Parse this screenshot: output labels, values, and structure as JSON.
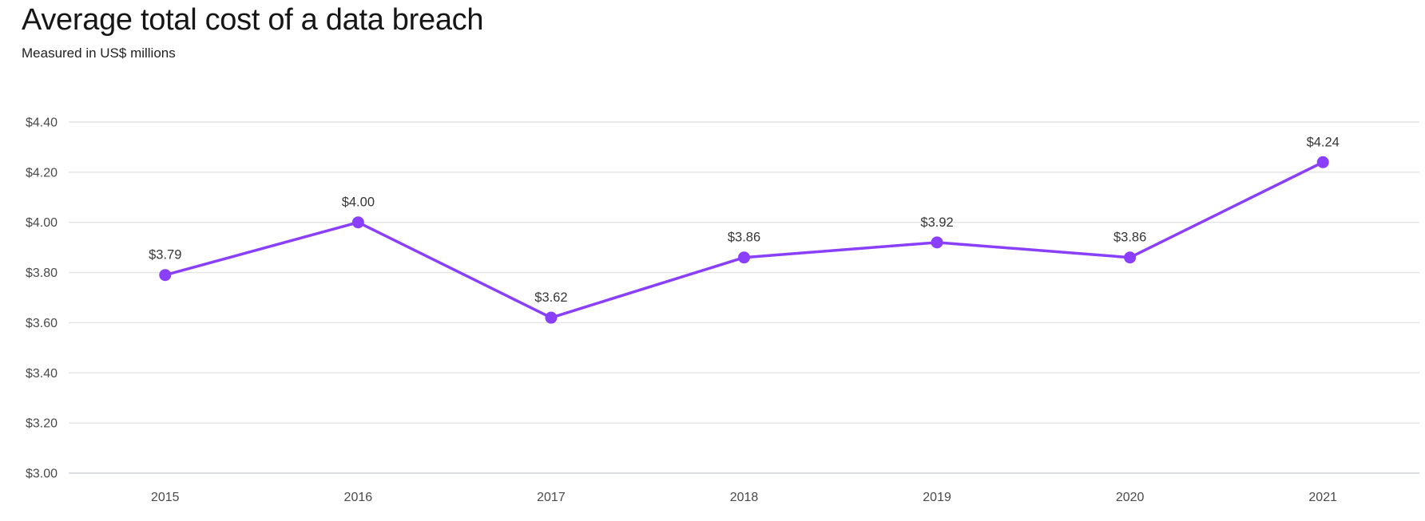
{
  "chart_data": {
    "type": "line",
    "title": "Average total cost of a data breach",
    "subtitle": "Measured in US$ millions",
    "categories": [
      "2015",
      "2016",
      "2017",
      "2018",
      "2019",
      "2020",
      "2021"
    ],
    "series": [
      {
        "name": "Average total cost of a data breach (US$ millions)",
        "values": [
          3.79,
          4.0,
          3.62,
          3.86,
          3.92,
          3.86,
          4.24
        ],
        "point_labels": [
          "$3.79",
          "$4.00",
          "$3.62",
          "$3.86",
          "$3.92",
          "$3.86",
          "$4.24"
        ]
      }
    ],
    "y_ticks": [
      {
        "value": 3.0,
        "label": "$3.00"
      },
      {
        "value": 3.2,
        "label": "$3.20"
      },
      {
        "value": 3.4,
        "label": "$3.40"
      },
      {
        "value": 3.6,
        "label": "$3.60"
      },
      {
        "value": 3.8,
        "label": "$3.80"
      },
      {
        "value": 4.0,
        "label": "$4.00"
      },
      {
        "value": 4.2,
        "label": "$4.20"
      },
      {
        "value": 4.4,
        "label": "$4.40"
      }
    ],
    "ylim": [
      3.0,
      4.4
    ],
    "grid": "horizontal",
    "legend": "none"
  },
  "colors": {
    "line": "#8a3ffc",
    "dot": "#8a3ffc",
    "gridline": "#e2e4e6",
    "baseline": "#d2d5d8",
    "tick_text": "#4a4a4a",
    "value_text": "#363636",
    "title_text": "#161616",
    "subtitle_text": "#1f1f1f",
    "background": "#ffffff"
  }
}
